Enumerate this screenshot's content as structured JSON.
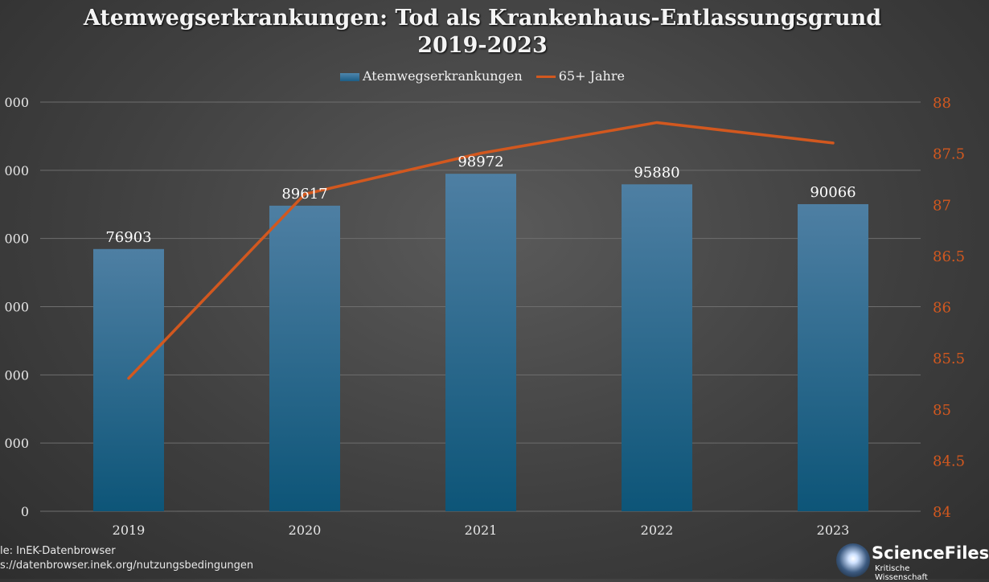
{
  "chart_data": {
    "type": "bar",
    "title_line1": "Atemwegserkrankungen: Tod als Krankenhaus-Entlassungsgrund",
    "title_line2": "2019-2023",
    "categories": [
      "2019",
      "2020",
      "2021",
      "2022",
      "2023"
    ],
    "series": [
      {
        "name": "Atemwegserkrankungen",
        "type": "bar",
        "axis": "left",
        "values": [
          76903,
          89617,
          98972,
          95880,
          90066
        ],
        "value_labels": [
          "76903",
          "89617",
          "98972",
          "95880",
          "90066"
        ],
        "color": "#1d5e86"
      },
      {
        "name": "65+ Jahre",
        "type": "line",
        "axis": "right",
        "values": [
          85.3,
          87.1,
          87.5,
          87.8,
          87.6
        ],
        "color": "#d2581f"
      }
    ],
    "y_left": {
      "ylim": [
        0,
        120000
      ],
      "tick_labels": [
        "0",
        "000",
        "000",
        "000",
        "000",
        "000",
        "000"
      ]
    },
    "y_right": {
      "ylim": [
        84,
        88
      ],
      "ticks": [
        84,
        84.5,
        85,
        85.5,
        86,
        86.5,
        87,
        87.5,
        88
      ],
      "tick_labels": [
        "84",
        "84.5",
        "85",
        "85.5",
        "86",
        "86.5",
        "87",
        "87.5",
        "88"
      ],
      "color": "#d2581f"
    },
    "grid": true,
    "legend_position": "top-center"
  },
  "source": {
    "line1": "le: InEK-Datenbrowser",
    "line2": "s://datenbrowser.inek.org/nutzungsbedingungen"
  },
  "logo": {
    "name": "ScienceFiles",
    "tagline": "Kritische Wissenschaft"
  },
  "colors": {
    "bar_top": "#4e86ad",
    "bar_bottom": "#0d5578",
    "line": "#d2581f",
    "grid": "#6e6e6e"
  }
}
